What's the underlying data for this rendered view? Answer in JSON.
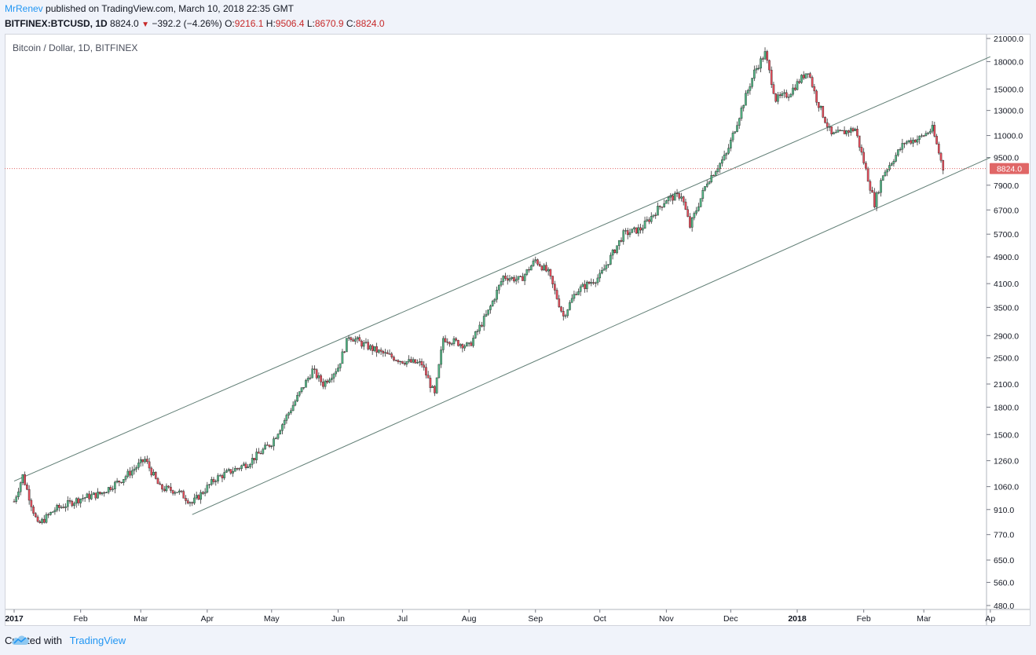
{
  "header": {
    "author": "MrRenev",
    "published": "published on TradingView.com, March 10, 2018 22:35 GMT"
  },
  "ohlc": {
    "symbol": "BITFINEX:BTCUSD, 1D",
    "last": "8824.0",
    "arrow": "▼",
    "change": "−392.2 (−4.26%)",
    "o_label": "O:",
    "o": "9216.1",
    "h_label": "H:",
    "h": "9506.4",
    "l_label": "L:",
    "l": "8670.9",
    "c_label": "C:",
    "c": "8824.0"
  },
  "chart_title": "Bitcoin / Dollar, 1D, BITFINEX",
  "footer": {
    "created": "Created with",
    "brand": "TradingView"
  },
  "colors": {
    "up": "#53b987",
    "down": "#eb4d5c",
    "channel": "#5f7d74",
    "price_line": "#e06666",
    "price_label_bg": "#e06666"
  },
  "chart_data": {
    "type": "line",
    "scale": "log",
    "title": "Bitcoin / Dollar, 1D, BITFINEX",
    "symbol": "BITFINEX:BTCUSD",
    "last_price": 8824.0,
    "y_ticks": [
      480,
      560,
      650,
      770,
      910,
      1060,
      1260,
      1500,
      1800,
      2100,
      2500,
      2900,
      3500,
      4100,
      4900,
      5700,
      6700,
      7900,
      9500,
      11000,
      13000,
      15000,
      18000,
      21000
    ],
    "y_tick_labels": [
      "480.0",
      "560.0",
      "650.0",
      "770.0",
      "910.0",
      "1060.0",
      "1260.0",
      "1500.0",
      "1800.0",
      "2100.0",
      "2500.0",
      "2900.0",
      "3500.0",
      "4100.0",
      "4900.0",
      "5700.0",
      "6700.0",
      "7900.0",
      "9500.0",
      "11000.0",
      "13000.0",
      "15000.0",
      "18000.0",
      "21000.0"
    ],
    "x_labels": [
      {
        "label": "2017",
        "bold": true
      },
      {
        "label": "Feb"
      },
      {
        "label": "Mar"
      },
      {
        "label": "Apr"
      },
      {
        "label": "May"
      },
      {
        "label": "Jun"
      },
      {
        "label": "Jul"
      },
      {
        "label": "Aug"
      },
      {
        "label": "Sep"
      },
      {
        "label": "Oct"
      },
      {
        "label": "Nov"
      },
      {
        "label": "Dec"
      },
      {
        "label": "2018",
        "bold": true
      },
      {
        "label": "Feb"
      },
      {
        "label": "Mar"
      },
      {
        "label": "Ap"
      }
    ],
    "series": [
      {
        "x": [
          "2017-01-01",
          "2017-01-05",
          "2017-01-12",
          "2017-01-20",
          "2017-02-01",
          "2017-02-10",
          "2017-02-20",
          "2017-03-03",
          "2017-03-10",
          "2017-03-18",
          "2017-03-25",
          "2017-04-05",
          "2017-04-20",
          "2017-05-01",
          "2017-05-10",
          "2017-05-20",
          "2017-05-25",
          "2017-06-01",
          "2017-06-06",
          "2017-06-12",
          "2017-06-20",
          "2017-07-01",
          "2017-07-10",
          "2017-07-16",
          "2017-07-20",
          "2017-08-01",
          "2017-08-10",
          "2017-08-17",
          "2017-08-25",
          "2017-09-01",
          "2017-09-07",
          "2017-09-14",
          "2017-09-20",
          "2017-10-01",
          "2017-10-12",
          "2017-10-20",
          "2017-11-01",
          "2017-11-08",
          "2017-11-12",
          "2017-11-20",
          "2017-11-29",
          "2017-12-07",
          "2017-12-12",
          "2017-12-17",
          "2017-12-22",
          "2017-12-28",
          "2018-01-06",
          "2018-01-10",
          "2018-01-17",
          "2018-01-28",
          "2018-02-06",
          "2018-02-10",
          "2018-02-20",
          "2018-02-27",
          "2018-03-05",
          "2018-03-10"
        ],
        "y": [
          960,
          1140,
          820,
          910,
          980,
          1010,
          1110,
          1270,
          1050,
          1030,
          950,
          1120,
          1240,
          1420,
          1780,
          2300,
          2100,
          2350,
          2900,
          2750,
          2600,
          2450,
          2400,
          1950,
          2850,
          2700,
          3400,
          4300,
          4200,
          4800,
          4400,
          3300,
          3900,
          4300,
          5700,
          5900,
          7200,
          7400,
          6000,
          8100,
          9700,
          13700,
          16800,
          19000,
          14000,
          14500,
          17000,
          14000,
          11000,
          11500,
          7000,
          8500,
          10500,
          10800,
          11500,
          8824
        ]
      }
    ],
    "channel_upper": {
      "start": [
        "2017-01-01",
        1100
      ],
      "end": [
        "2018-04-01",
        18600
      ]
    },
    "channel_lower": {
      "start": [
        "2017-03-25",
        880
      ],
      "end": [
        "2018-04-01",
        9500
      ]
    },
    "grid": false
  }
}
